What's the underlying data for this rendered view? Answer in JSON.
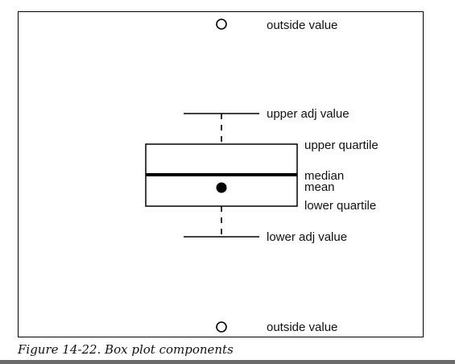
{
  "labels": {
    "outside_top": "outside value",
    "upper_adj": "upper adj value",
    "upper_quartile": "upper quartile",
    "median": "median",
    "mean": "mean",
    "lower_quartile": "lower quartile",
    "lower_adj": "lower adj value",
    "outside_bottom": "outside value"
  },
  "caption": "Figure 14-22. Box plot components"
}
